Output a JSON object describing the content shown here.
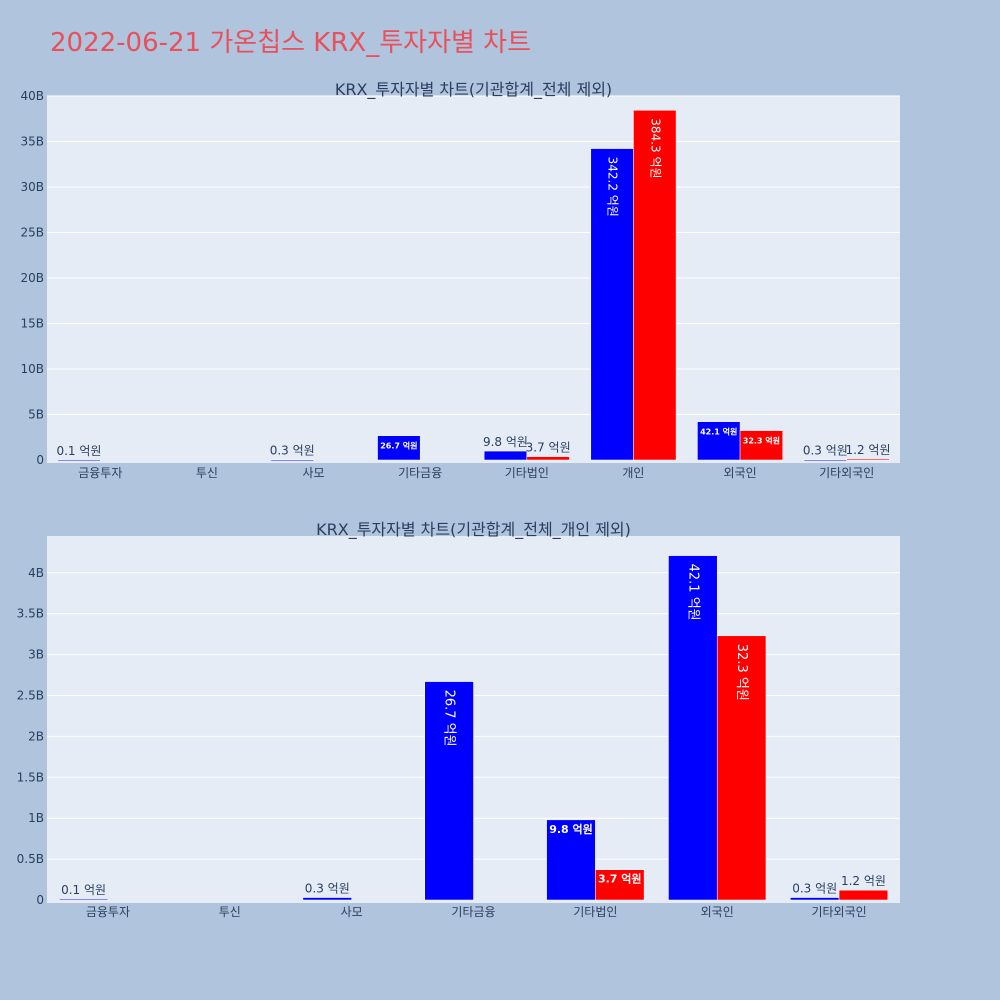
{
  "page_title": "2022-06-21 가온칩스 KRX_투자자별 차트",
  "colors": {
    "background": "#b0c4de",
    "plot_background": "#e5ecf6",
    "buy": "#0000ff",
    "sell": "#ff0000",
    "title": "#e8505b",
    "text": "#2a3f5f"
  },
  "chart_data": [
    {
      "type": "bar",
      "title": "KRX_투자자별 차트(기관합계_전체 제외)",
      "categories": [
        "금융투자",
        "투신",
        "사모",
        "기타금융",
        "기타법인",
        "개인",
        "외국인",
        "기타외국인"
      ],
      "series": [
        {
          "values": [
            10000000,
            0,
            30000000,
            2670000000,
            980000000,
            34220000000,
            4210000000,
            30000000
          ],
          "labels": [
            "0.1 억원",
            "",
            "0.3 억원",
            "26.7 억원",
            "9.8 억원",
            "342.2 억원",
            "42.1 억원",
            "0.3 억원"
          ]
        },
        {
          "values": [
            0,
            0,
            0,
            0,
            370000000,
            38430000000,
            3230000000,
            120000000
          ],
          "labels": [
            "",
            "",
            "",
            "",
            "3.7 억원",
            "384.3 억원",
            "32.3 억원",
            "1.2 억원"
          ]
        }
      ],
      "ylim": [
        0,
        40000000000
      ],
      "yticks": [
        0,
        5000000000,
        10000000000,
        15000000000,
        20000000000,
        25000000000,
        30000000000,
        35000000000,
        40000000000
      ],
      "ytick_labels": [
        "0",
        "5B",
        "10B",
        "15B",
        "20B",
        "25B",
        "30B",
        "35B",
        "40B"
      ],
      "grid": true
    },
    {
      "type": "bar",
      "title": "KRX_투자자별 차트(기관합계_전체_개인 제외)",
      "categories": [
        "금융투자",
        "투신",
        "사모",
        "기타금융",
        "기타법인",
        "외국인",
        "기타외국인"
      ],
      "series": [
        {
          "values": [
            10000000,
            0,
            30000000,
            2670000000,
            980000000,
            4210000000,
            30000000
          ],
          "labels": [
            "0.1 억원",
            "",
            "0.3 억원",
            "26.7 억원",
            "9.8 억원",
            "42.1 억원",
            "0.3 억원"
          ]
        },
        {
          "values": [
            0,
            0,
            0,
            0,
            370000000,
            3230000000,
            120000000
          ],
          "labels": [
            "",
            "",
            "",
            "",
            "3.7 억원",
            "32.3 억원",
            "1.2 억원"
          ]
        }
      ],
      "ylim": [
        0,
        4450000000
      ],
      "yticks": [
        0,
        500000000,
        1000000000,
        1500000000,
        2000000000,
        2500000000,
        3000000000,
        3500000000,
        4000000000
      ],
      "ytick_labels": [
        "0",
        "0.5B",
        "1B",
        "1.5B",
        "2B",
        "2.5B",
        "3B",
        "3.5B",
        "4B"
      ],
      "grid": true
    }
  ]
}
